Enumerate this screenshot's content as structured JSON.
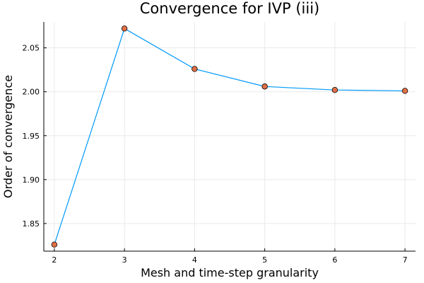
{
  "chart_data": {
    "type": "line",
    "title": "Convergence for IVP (iii)",
    "xlabel": "Mesh and time-step granularity",
    "ylabel": "Order of convergence",
    "x": [
      2,
      3,
      4,
      5,
      6,
      7
    ],
    "series": [
      {
        "values": [
          1.826,
          2.072,
          2.026,
          2.006,
          2.002,
          2.001
        ]
      }
    ],
    "xticks": [
      "2",
      "3",
      "4",
      "5",
      "6",
      "7"
    ],
    "yticks": [
      "1.85",
      "1.90",
      "1.95",
      "2.00",
      "2.05"
    ],
    "xlim": [
      1.85,
      7.15
    ],
    "ylim": [
      1.8185,
      2.0795
    ],
    "grid": true,
    "legend": false,
    "line_color": "#009AFA",
    "marker_color": "#E26F46"
  }
}
